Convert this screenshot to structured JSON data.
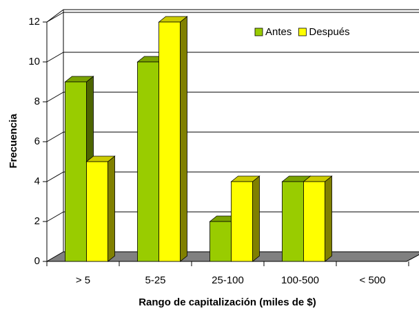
{
  "chart_data": {
    "type": "bar3d",
    "categories": [
      "> 5",
      "5-25",
      "25-100",
      "100-500",
      "< 500"
    ],
    "series": [
      {
        "name": "Antes",
        "color": "#99cc00",
        "values": [
          9,
          10,
          2,
          4,
          0
        ]
      },
      {
        "name": "Después",
        "color": "#ffff00",
        "values": [
          5,
          12,
          4,
          4,
          0
        ]
      }
    ],
    "ylim": [
      0,
      12
    ],
    "yticks": [
      0,
      2,
      4,
      6,
      8,
      10,
      12
    ],
    "grid": true,
    "y_label": "Frecuencia",
    "x_label": "Rango de capitalización (miles de $)",
    "legend": "upper right"
  }
}
